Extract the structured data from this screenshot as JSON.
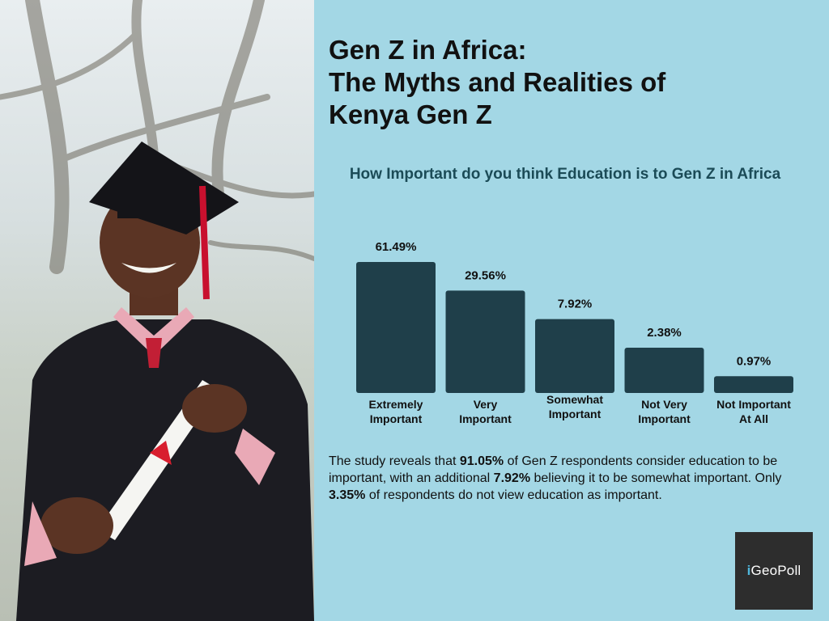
{
  "header": {
    "title_line1": "Gen Z in Africa:",
    "title_line2": "The Myths and Realities of",
    "title_line3": "Kenya Gen Z"
  },
  "chart_data": {
    "type": "bar",
    "title": "How Important do you think Education is to Gen Z in Africa",
    "categories": [
      "Extremely Important",
      "Very Important",
      "Somewhat Important",
      "Not Very Important",
      "Not Important At All"
    ],
    "category_lines": [
      [
        "Extremely",
        "Important"
      ],
      [
        "Very",
        "Important"
      ],
      [
        "Somewhat",
        "Important"
      ],
      [
        "Not Very",
        "Important"
      ],
      [
        "Not Important",
        "At All"
      ]
    ],
    "values": [
      61.49,
      29.56,
      7.92,
      2.38,
      0.97
    ],
    "value_labels": [
      "61.49%",
      "29.56%",
      "7.92%",
      "2.38%",
      "0.97%"
    ],
    "bar_color": "#1f3f4a"
  },
  "summary": {
    "p1": "The study reveals that ",
    "b1": "91.05%",
    "p2": " of Gen Z respondents consider education to be important, with an additional ",
    "b2": "7.92%",
    "p3": " believing it to be somewhat important. Only ",
    "b3": "3.35%",
    "p4": " of respondents do not view education as important."
  },
  "logo": {
    "dot": "i",
    "text": "GeoPoll"
  },
  "colors": {
    "background": "#a3d7e5",
    "logo_bg": "#2d2d2d",
    "title_accent": "#1b4b57"
  }
}
